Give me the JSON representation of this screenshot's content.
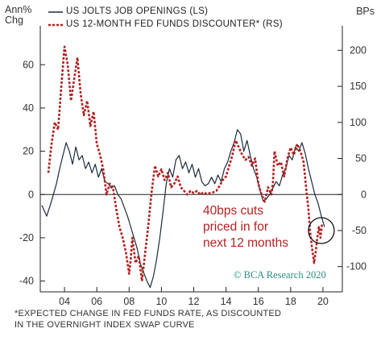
{
  "labels": {
    "y_left": [
      "Ann%",
      "Chg"
    ],
    "y_right": "BPs",
    "watermark": "© BCA Research 2020",
    "annotation": [
      "40bps cuts",
      "priced in for",
      "next 12 months"
    ],
    "footnote": [
      "*EXPECTED CHANGE IN FED FUNDS RATE, AS DISCOUNTED",
      "IN THE OVERNIGHT INDEX SWAP CURVE"
    ]
  },
  "colors": {
    "jolts": "#1c2b3a",
    "discounter": "#b22222",
    "annotation": "#b22222",
    "watermark": "#2c8c83",
    "axis": "#222222"
  },
  "chart_data": {
    "type": "line",
    "title": "",
    "x_axis": {
      "ticks": [
        "04",
        "06",
        "08",
        "10",
        "12",
        "14",
        "16",
        "18",
        "20"
      ],
      "tick_years": [
        2004,
        2006,
        2008,
        2010,
        2012,
        2014,
        2016,
        2018,
        2020
      ],
      "range": [
        2002.5,
        2021.2
      ]
    },
    "y_left": {
      "label": "Ann% Chg",
      "range": [
        -45,
        75
      ],
      "ticks": [
        -40,
        -20,
        0,
        20,
        40,
        60
      ]
    },
    "y_right": {
      "label": "BPs",
      "range": [
        -135,
        225
      ],
      "ticks": [
        -100,
        -50,
        0,
        50,
        100,
        150,
        200
      ]
    },
    "legend": {
      "placement": "top-left"
    },
    "grid": false,
    "series": [
      {
        "name": "US JOLTS JOB OPENINGS (LS)",
        "axis": "left",
        "style": "solid",
        "points": [
          [
            2002.6,
            -5
          ],
          [
            2002.9,
            -10
          ],
          [
            2003.2,
            -3
          ],
          [
            2003.5,
            5
          ],
          [
            2003.7,
            12
          ],
          [
            2003.9,
            18
          ],
          [
            2004.1,
            24
          ],
          [
            2004.3,
            20
          ],
          [
            2004.5,
            14
          ],
          [
            2004.7,
            22
          ],
          [
            2004.9,
            16
          ],
          [
            2005.1,
            18
          ],
          [
            2005.3,
            12
          ],
          [
            2005.5,
            15
          ],
          [
            2005.7,
            10
          ],
          [
            2005.9,
            14
          ],
          [
            2006.1,
            8
          ],
          [
            2006.3,
            12
          ],
          [
            2006.5,
            6
          ],
          [
            2006.7,
            5
          ],
          [
            2006.9,
            3
          ],
          [
            2007.1,
            4
          ],
          [
            2007.3,
            0
          ],
          [
            2007.5,
            -2
          ],
          [
            2007.7,
            -6
          ],
          [
            2007.9,
            -10
          ],
          [
            2008.1,
            -15
          ],
          [
            2008.3,
            -20
          ],
          [
            2008.5,
            -25
          ],
          [
            2008.7,
            -32
          ],
          [
            2008.9,
            -36
          ],
          [
            2009.1,
            -40
          ],
          [
            2009.3,
            -43
          ],
          [
            2009.5,
            -38
          ],
          [
            2009.7,
            -30
          ],
          [
            2009.9,
            -20
          ],
          [
            2010.1,
            -8
          ],
          [
            2010.3,
            5
          ],
          [
            2010.5,
            12
          ],
          [
            2010.7,
            8
          ],
          [
            2010.9,
            16
          ],
          [
            2011.1,
            18
          ],
          [
            2011.3,
            12
          ],
          [
            2011.5,
            15
          ],
          [
            2011.7,
            10
          ],
          [
            2011.9,
            14
          ],
          [
            2012.1,
            8
          ],
          [
            2012.3,
            12
          ],
          [
            2012.5,
            6
          ],
          [
            2012.7,
            4
          ],
          [
            2012.9,
            5
          ],
          [
            2013.1,
            8
          ],
          [
            2013.3,
            5
          ],
          [
            2013.5,
            9
          ],
          [
            2013.7,
            6
          ],
          [
            2013.9,
            12
          ],
          [
            2014.1,
            15
          ],
          [
            2014.3,
            20
          ],
          [
            2014.5,
            24
          ],
          [
            2014.7,
            30
          ],
          [
            2014.9,
            28
          ],
          [
            2015.1,
            20
          ],
          [
            2015.3,
            25
          ],
          [
            2015.5,
            18
          ],
          [
            2015.7,
            12
          ],
          [
            2015.9,
            8
          ],
          [
            2016.1,
            2
          ],
          [
            2016.3,
            -3
          ],
          [
            2016.5,
            -2
          ],
          [
            2016.7,
            0
          ],
          [
            2016.9,
            3
          ],
          [
            2017.1,
            6
          ],
          [
            2017.3,
            4
          ],
          [
            2017.5,
            9
          ],
          [
            2017.7,
            12
          ],
          [
            2017.9,
            18
          ],
          [
            2018.1,
            16
          ],
          [
            2018.3,
            22
          ],
          [
            2018.5,
            20
          ],
          [
            2018.7,
            24
          ],
          [
            2018.9,
            19
          ],
          [
            2019.1,
            12
          ],
          [
            2019.3,
            6
          ],
          [
            2019.5,
            0
          ],
          [
            2019.7,
            -4
          ],
          [
            2019.9,
            -10
          ],
          [
            2020.1,
            -15
          ]
        ]
      },
      {
        "name": "US 12-MONTH FED FUNDS DISCOUNTER* (RS)",
        "axis": "right",
        "style": "dashed",
        "points": [
          [
            2003.0,
            30
          ],
          [
            2003.2,
            70
          ],
          [
            2003.4,
            100
          ],
          [
            2003.6,
            90
          ],
          [
            2003.8,
            150
          ],
          [
            2004.0,
            205
          ],
          [
            2004.2,
            180
          ],
          [
            2004.4,
            130
          ],
          [
            2004.6,
            160
          ],
          [
            2004.8,
            190
          ],
          [
            2005.0,
            140
          ],
          [
            2005.2,
            110
          ],
          [
            2005.4,
            130
          ],
          [
            2005.6,
            95
          ],
          [
            2005.8,
            115
          ],
          [
            2006.0,
            70
          ],
          [
            2006.2,
            55
          ],
          [
            2006.4,
            35
          ],
          [
            2006.6,
            0
          ],
          [
            2006.8,
            15
          ],
          [
            2007.0,
            10
          ],
          [
            2007.2,
            -20
          ],
          [
            2007.4,
            -45
          ],
          [
            2007.6,
            -60
          ],
          [
            2007.8,
            -80
          ],
          [
            2008.0,
            -110
          ],
          [
            2008.1,
            -90
          ],
          [
            2008.2,
            -60
          ],
          [
            2008.4,
            -95
          ],
          [
            2008.6,
            -85
          ],
          [
            2008.8,
            -120
          ],
          [
            2009.0,
            -80
          ],
          [
            2009.2,
            -40
          ],
          [
            2009.4,
            5
          ],
          [
            2009.6,
            40
          ],
          [
            2009.8,
            25
          ],
          [
            2010.0,
            35
          ],
          [
            2010.2,
            20
          ],
          [
            2010.4,
            30
          ],
          [
            2010.6,
            10
          ],
          [
            2010.8,
            15
          ],
          [
            2011.0,
            25
          ],
          [
            2011.2,
            10
          ],
          [
            2011.4,
            5
          ],
          [
            2011.6,
            0
          ],
          [
            2011.8,
            5
          ],
          [
            2012.0,
            2
          ],
          [
            2012.2,
            5
          ],
          [
            2012.4,
            0
          ],
          [
            2012.6,
            3
          ],
          [
            2012.8,
            1
          ],
          [
            2013.0,
            2
          ],
          [
            2013.2,
            3
          ],
          [
            2013.4,
            5
          ],
          [
            2013.6,
            12
          ],
          [
            2013.8,
            20
          ],
          [
            2014.0,
            25
          ],
          [
            2014.2,
            40
          ],
          [
            2014.4,
            55
          ],
          [
            2014.6,
            75
          ],
          [
            2014.8,
            65
          ],
          [
            2015.0,
            55
          ],
          [
            2015.2,
            48
          ],
          [
            2015.4,
            52
          ],
          [
            2015.6,
            40
          ],
          [
            2015.8,
            50
          ],
          [
            2016.0,
            15
          ],
          [
            2016.2,
            0
          ],
          [
            2016.4,
            -10
          ],
          [
            2016.6,
            10
          ],
          [
            2016.8,
            0
          ],
          [
            2016.9,
            15
          ],
          [
            2017.0,
            60
          ],
          [
            2017.2,
            40
          ],
          [
            2017.4,
            45
          ],
          [
            2017.6,
            25
          ],
          [
            2017.8,
            50
          ],
          [
            2018.0,
            65
          ],
          [
            2018.2,
            55
          ],
          [
            2018.4,
            70
          ],
          [
            2018.6,
            60
          ],
          [
            2018.8,
            45
          ],
          [
            2019.0,
            0
          ],
          [
            2019.1,
            -20
          ],
          [
            2019.2,
            -50
          ],
          [
            2019.3,
            -70
          ],
          [
            2019.45,
            -95
          ],
          [
            2019.55,
            -80
          ],
          [
            2019.65,
            -60
          ],
          [
            2019.75,
            -45
          ],
          [
            2019.85,
            -60
          ],
          [
            2019.95,
            -40
          ]
        ]
      }
    ],
    "annotations": [
      {
        "text": "40bps cuts priced in for next 12 months",
        "x": 2019.9,
        "y_right": -50,
        "marker": "circle"
      }
    ]
  }
}
